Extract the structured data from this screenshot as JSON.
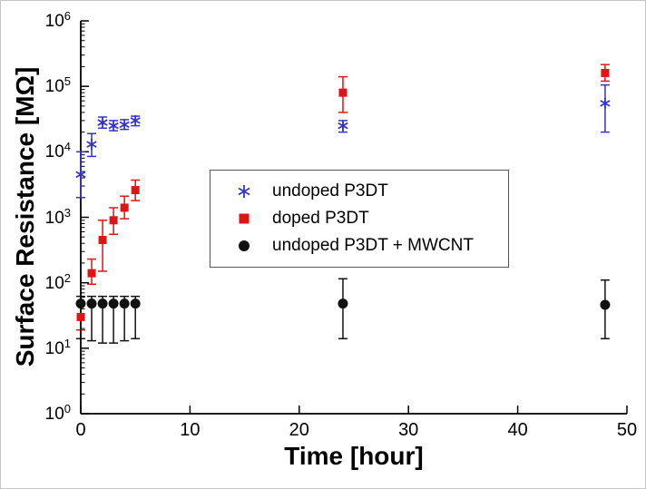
{
  "chart_data": {
    "type": "scatter",
    "title": "",
    "xlabel": "Time [hour]",
    "ylabel": "Surface Resistance [MΩ]",
    "x_ticks": [
      0,
      10,
      20,
      30,
      40,
      50
    ],
    "xlim": [
      0,
      50
    ],
    "y_scale": "log",
    "y_exp_range": [
      0,
      6
    ],
    "y_tick_base": "10",
    "y_tick_exponents": [
      0,
      1,
      2,
      3,
      4,
      5,
      6
    ],
    "grid": false,
    "legend_position": "inside center-left",
    "series": [
      {
        "name": "undoped P3DT",
        "marker": "asterisk",
        "color": "#3434c8",
        "points": [
          {
            "x": 0,
            "y": 4500,
            "ylo": 2000,
            "yhi": 10000
          },
          {
            "x": 1,
            "y": 13000,
            "ylo": 8500,
            "yhi": 19000
          },
          {
            "x": 2,
            "y": 28000,
            "ylo": 23000,
            "yhi": 34000
          },
          {
            "x": 3,
            "y": 25000,
            "ylo": 21000,
            "yhi": 30000
          },
          {
            "x": 4,
            "y": 26000,
            "ylo": 22000,
            "yhi": 31000
          },
          {
            "x": 5,
            "y": 30000,
            "ylo": 25000,
            "yhi": 35000
          },
          {
            "x": 24,
            "y": 25000,
            "ylo": 20000,
            "yhi": 30000
          },
          {
            "x": 48,
            "y": 55000,
            "ylo": 20000,
            "yhi": 105000
          }
        ]
      },
      {
        "name": "doped P3DT",
        "marker": "square",
        "color": "#e01414",
        "points": [
          {
            "x": 0,
            "y": 30,
            "ylo": 19,
            "yhi": 46
          },
          {
            "x": 1,
            "y": 140,
            "ylo": 95,
            "yhi": 230
          },
          {
            "x": 2,
            "y": 450,
            "ylo": 150,
            "yhi": 900
          },
          {
            "x": 3,
            "y": 900,
            "ylo": 550,
            "yhi": 1400
          },
          {
            "x": 4,
            "y": 1400,
            "ylo": 950,
            "yhi": 2100
          },
          {
            "x": 5,
            "y": 2600,
            "ylo": 1800,
            "yhi": 3700
          },
          {
            "x": 24,
            "y": 80000,
            "ylo": 40000,
            "yhi": 140000
          },
          {
            "x": 48,
            "y": 160000,
            "ylo": 120000,
            "yhi": 215000
          }
        ]
      },
      {
        "name": "undoped P3DT + MWCNT",
        "marker": "circle",
        "color": "#111111",
        "points": [
          {
            "x": 0,
            "y": 48,
            "ylo": 14,
            "yhi": 62
          },
          {
            "x": 1,
            "y": 48,
            "ylo": 13,
            "yhi": 62
          },
          {
            "x": 2,
            "y": 48,
            "ylo": 12,
            "yhi": 62
          },
          {
            "x": 3,
            "y": 48,
            "ylo": 12,
            "yhi": 62
          },
          {
            "x": 4,
            "y": 48,
            "ylo": 13,
            "yhi": 62
          },
          {
            "x": 5,
            "y": 48,
            "ylo": 14,
            "yhi": 62
          },
          {
            "x": 24,
            "y": 48,
            "ylo": 14,
            "yhi": 115
          },
          {
            "x": 48,
            "y": 46,
            "ylo": 14,
            "yhi": 110
          }
        ]
      }
    ]
  }
}
